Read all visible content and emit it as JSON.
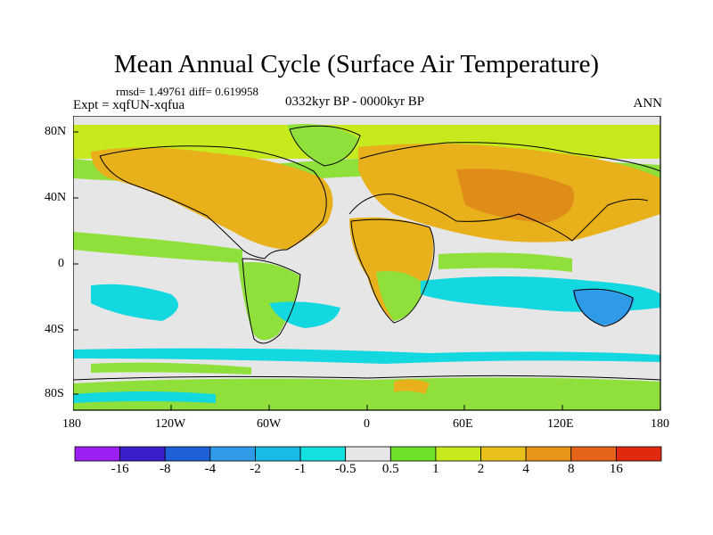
{
  "title": "Mean Annual Cycle (Surface Air Temperature)",
  "stats": "rmsd= 1.49761  diff= 0.619958",
  "experiment": "Expt = xqfUN-xqfua",
  "period": "0332kyr BP - 0000kyr BP",
  "season": "ANN",
  "lat_labels": [
    "80N",
    "40N",
    "0",
    "40S",
    "80S"
  ],
  "lon_labels": [
    "180",
    "120W",
    "60W",
    "0",
    "60E",
    "120E",
    "180"
  ],
  "colorbar": {
    "labels": [
      "-16",
      "-8",
      "-4",
      "-2",
      "-1",
      "-0.5",
      "0.5",
      "1",
      "2",
      "4",
      "8",
      "16"
    ],
    "colors": [
      "#9a1ff0",
      "#3a1fc8",
      "#1f5fd8",
      "#2f9be8",
      "#18bbe6",
      "#14e0e0",
      "#e6e6e6",
      "#6ee028",
      "#c6ea1e",
      "#e8c01a",
      "#e8961a",
      "#e6641a",
      "#e02a10"
    ]
  },
  "map_colors": {
    "ocean_neutral": "#e6e6e6",
    "warm_green": "#8fe03a",
    "warm_yellow": "#c6ea1e",
    "warm_orange": "#e8b01a",
    "warm_deep": "#e08c18",
    "cool_cyan": "#14d8e0",
    "cool_blue": "#2f9be8",
    "coast": "#000000"
  }
}
